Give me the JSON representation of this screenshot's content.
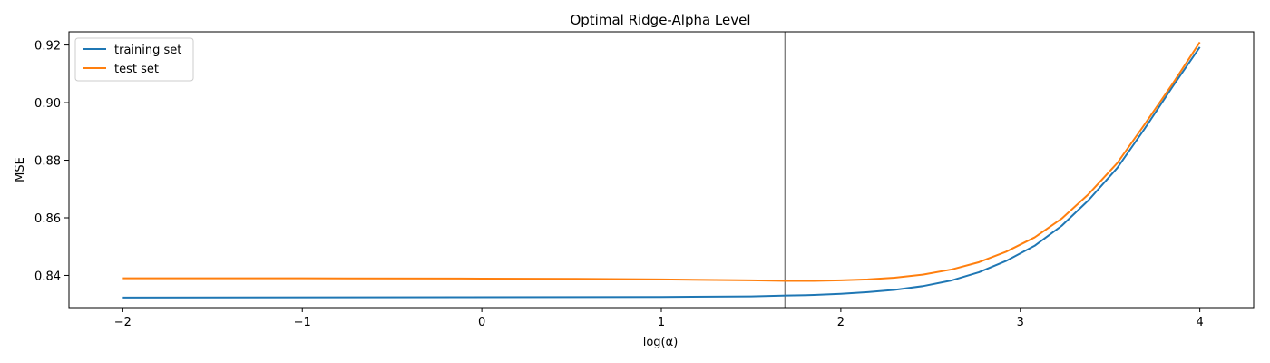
{
  "chart_data": {
    "type": "line",
    "title": "Optimal Ridge-Alpha Level",
    "xlabel": "log(α)",
    "ylabel": "MSE",
    "xlim": [
      -2.3,
      4.3
    ],
    "ylim": [
      0.8288,
      0.9246
    ],
    "x_ticks": [
      -2,
      -1,
      0,
      1,
      2,
      3,
      4
    ],
    "x_tick_labels": [
      "−2",
      "−1",
      "0",
      "1",
      "2",
      "3",
      "4"
    ],
    "y_ticks": [
      0.84,
      0.86,
      0.88,
      0.9,
      0.92
    ],
    "y_tick_labels": [
      "0.84",
      "0.86",
      "0.88",
      "0.90",
      "0.92"
    ],
    "grid": false,
    "legend_position": "top-left",
    "vline": {
      "x": 1.69,
      "color": "#808080"
    },
    "series": [
      {
        "name": "training set",
        "color": "#1f77b4",
        "x": [
          -2.0,
          1.0,
          1.5,
          1.7,
          1.85,
          2.0,
          2.15,
          2.3,
          2.46,
          2.62,
          2.77,
          2.92,
          3.08,
          3.23,
          3.38,
          3.54,
          3.69,
          3.85,
          4.0
        ],
        "y": [
          0.8323,
          0.8325,
          0.8327,
          0.833,
          0.8332,
          0.8336,
          0.8342,
          0.835,
          0.8363,
          0.8383,
          0.8411,
          0.845,
          0.8503,
          0.8572,
          0.8661,
          0.8773,
          0.8907,
          0.9057,
          0.9193
        ]
      },
      {
        "name": "test set",
        "color": "#ff7f0e",
        "x": [
          -2.0,
          -1.0,
          0.0,
          0.5,
          1.0,
          1.5,
          1.7,
          1.85,
          2.0,
          2.15,
          2.3,
          2.46,
          2.62,
          2.77,
          2.92,
          3.08,
          3.23,
          3.38,
          3.54,
          3.69,
          3.85,
          4.0
        ],
        "y": [
          0.839,
          0.839,
          0.8389,
          0.8388,
          0.8386,
          0.8383,
          0.8381,
          0.8381,
          0.8383,
          0.8386,
          0.8392,
          0.8403,
          0.8421,
          0.8446,
          0.8482,
          0.8532,
          0.8597,
          0.8682,
          0.879,
          0.8922,
          0.9067,
          0.921
        ]
      }
    ]
  }
}
